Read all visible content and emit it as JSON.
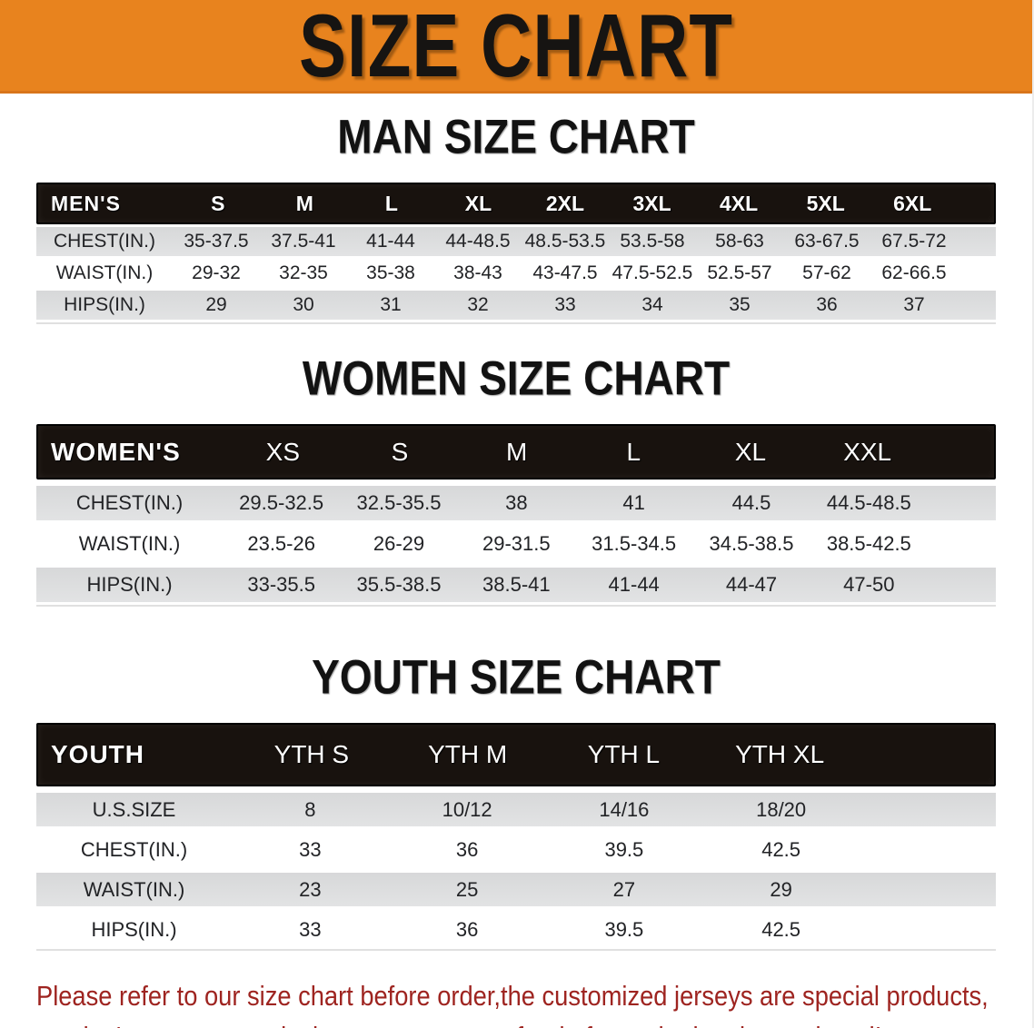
{
  "banner": {
    "title": "SIZE CHART"
  },
  "colors": {
    "banner_bg": "#e8831e",
    "banner_edge": "#d8751b",
    "title_text": "#161412",
    "header_bar": "#18120e",
    "stripe_top": "#d7d8d9",
    "stripe_bottom": "#e2e3e4",
    "disclaimer_red": "#9e2420"
  },
  "sections": [
    {
      "heading": "MAN SIZE CHART",
      "table": {
        "label": "MEN'S",
        "columns": [
          "S",
          "M",
          "L",
          "XL",
          "2XL",
          "3XL",
          "4XL",
          "5XL",
          "6XL"
        ],
        "rows": [
          {
            "label": "CHEST(IN.)",
            "values": [
              "35-37.5",
              "37.5-41",
              "41-44",
              "44-48.5",
              "48.5-53.5",
              "53.5-58",
              "58-63",
              "63-67.5",
              "67.5-72"
            ]
          },
          {
            "label": "WAIST(IN.)",
            "values": [
              "29-32",
              "32-35",
              "35-38",
              "38-43",
              "43-47.5",
              "47.5-52.5",
              "52.5-57",
              "57-62",
              "62-66.5"
            ]
          },
          {
            "label": "HIPS(IN.)",
            "values": [
              "29",
              "30",
              "31",
              "32",
              "33",
              "34",
              "35",
              "36",
              "37"
            ]
          }
        ]
      }
    },
    {
      "heading": "WOMEN SIZE CHART",
      "table": {
        "label": "WOMEN'S",
        "columns": [
          "XS",
          "S",
          "M",
          "L",
          "XL",
          "XXL"
        ],
        "rows": [
          {
            "label": "CHEST(IN.)",
            "values": [
              "29.5-32.5",
              "32.5-35.5",
              "38",
              "41",
              "44.5",
              "44.5-48.5"
            ]
          },
          {
            "label": "WAIST(IN.)",
            "values": [
              "23.5-26",
              "26-29",
              "29-31.5",
              "31.5-34.5",
              "34.5-38.5",
              "38.5-42.5"
            ]
          },
          {
            "label": "HIPS(IN.)",
            "values": [
              "33-35.5",
              "35.5-38.5",
              "38.5-41",
              "41-44",
              "44-47",
              "47-50"
            ]
          }
        ]
      }
    },
    {
      "heading": "YOUTH SIZE CHART",
      "table": {
        "label": "YOUTH",
        "columns": [
          "YTH S",
          "YTH M",
          "YTH L",
          "YTH XL"
        ],
        "rows": [
          {
            "label": "U.S.SIZE",
            "values": [
              "8",
              "10/12",
              "14/16",
              "18/20"
            ]
          },
          {
            "label": "CHEST(IN.)",
            "values": [
              "33",
              "36",
              "39.5",
              "42.5"
            ]
          },
          {
            "label": "WAIST(IN.)",
            "values": [
              "23",
              "25",
              "27",
              "29"
            ]
          },
          {
            "label": "HIPS(IN.)",
            "values": [
              "33",
              "36",
              "39.5",
              "42.5"
            ]
          }
        ]
      }
    }
  ],
  "disclaimer": {
    "line1": "Please refer to our size chart before order,the customized jerseys are special products,",
    "line2": "we don't accept cancel, change, teturn or refund after order has been placed!"
  }
}
